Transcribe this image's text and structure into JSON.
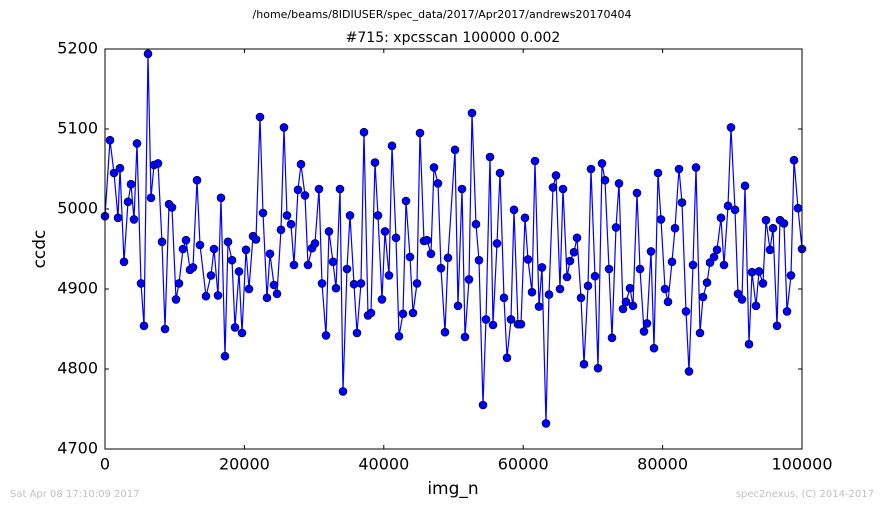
{
  "chart_data": {
    "type": "line",
    "suptitle": "/home/beams/8IDIUSER/spec_data/2017/Apr2017/andrews20170404",
    "title": "#715: xpcsscan 100000 0.002",
    "xlabel": "img_n",
    "ylabel": "ccdc",
    "footer_left": "Sat Apr 08 17:10:09 2017",
    "footer_right": "spec2nexus, (C) 2014-2017",
    "xlim": [
      0,
      100000
    ],
    "xticks": [
      0,
      20000,
      40000,
      60000,
      80000,
      100000
    ],
    "ylim": [
      4700,
      5200
    ],
    "yticks": [
      4700,
      4800,
      4900,
      5000,
      5100,
      5200
    ],
    "grid": false,
    "x": [
      0,
      717,
      1291,
      1865,
      2152,
      2726,
      3300,
      3730,
      4161,
      4591,
      5165,
      5596,
      6169,
      6600,
      7030,
      7604,
      8178,
      8608,
      9182,
      9612,
      10186,
      10617,
      11190,
      11621,
      12195,
      12625,
      13199,
      13629,
      14490,
      15207,
      15638,
      16212,
      16642,
      17216,
      17646,
      18220,
      18651,
      19224,
      19655,
      20229,
      20659,
      21233,
      21663,
      22237,
      22668,
      23241,
      23672,
      24246,
      24676,
      25250,
      25680,
      26111,
      26685,
      27115,
      27689,
      28119,
      28693,
      29123,
      29697,
      30128,
      30702,
      31132,
      31706,
      32136,
      32710,
      33141,
      33715,
      34145,
      34719,
      35149,
      35723,
      36154,
      36727,
      37158,
      37732,
      38162,
      38736,
      39166,
      39740,
      40171,
      40745,
      41175,
      41749,
      42179,
      42753,
      43184,
      43758,
      44188,
      44762,
      45192,
      45766,
      46197,
      46771,
      47201,
      47775,
      48205,
      48779,
      49210,
      50214,
      50645,
      51219,
      51649,
      52223,
      52654,
      53228,
      53658,
      54232,
      54662,
      55236,
      55667,
      56241,
      56671,
      57245,
      57675,
      58249,
      58680,
      59254,
      59684,
      60258,
      60688,
      61262,
      61693,
      62267,
      62697,
      63271,
      63701,
      64275,
      64706,
      65280,
      65710,
      66284,
      66714,
      67288,
      67719,
      68293,
      68723,
      69297,
      69727,
      70301,
      70732,
      71306,
      71736,
      72310,
      72740,
      73314,
      73745,
      74319,
      74749,
      75323,
      75753,
      76327,
      76758,
      77332,
      77762,
      78336,
      78766,
      79340,
      79771,
      80345,
      80775,
      81349,
      81779,
      82353,
      82784,
      83358,
      83788,
      84362,
      84792,
      85366,
      85797,
      86371,
      86801,
      87375,
      87805,
      88379,
      88810,
      89384,
      89814,
      90388,
      90818,
      91392,
      91823,
      92397,
      92827,
      93401,
      93831,
      94405,
      94836,
      95410,
      95840,
      96414,
      96844,
      97418,
      97849,
      98423,
      98853,
      99427,
      100000
    ],
    "series": [
      {
        "color": "#0000ff",
        "values": [
          4991,
          5086,
          5045,
          4989,
          5051,
          4934,
          5009,
          5031,
          4987,
          5082,
          4907,
          4854,
          5194,
          5014,
          5055,
          5057,
          4959,
          4850,
          5006,
          5002,
          4887,
          4907,
          4950,
          4961,
          4924,
          4927,
          5036,
          4955,
          4891,
          4917,
          4950,
          4892,
          5014,
          4816,
          4959,
          4936,
          4852,
          4922,
          4845,
          4949,
          4900,
          4966,
          4962,
          5115,
          4995,
          4889,
          4944,
          4905,
          4894,
          4974,
          5102,
          4992,
          4981,
          4930,
          5024,
          5056,
          5017,
          4930,
          4951,
          4957,
          5025,
          4907,
          4842,
          4972,
          4934,
          4901,
          5025,
          4772,
          4925,
          4992,
          4906,
          4845,
          4907,
          5096,
          4867,
          4870,
          5058,
          4992,
          4887,
          4972,
          4917,
          5079,
          4964,
          4841,
          4869,
          5010,
          4940,
          4870,
          4907,
          5095,
          4960,
          4961,
          4944,
          5052,
          5032,
          4926,
          4846,
          4939,
          5074,
          4879,
          5025,
          4840,
          4912,
          5120,
          4981,
          4936,
          4755,
          4862,
          5065,
          4855,
          4957,
          5045,
          4889,
          4814,
          4862,
          4999,
          4856,
          4856,
          4989,
          4937,
          4896,
          5060,
          4878,
          4927,
          4732,
          4893,
          5027,
          5042,
          4900,
          5025,
          4915,
          4935,
          4946,
          4964,
          4889,
          4806,
          4904,
          5050,
          4916,
          4801,
          5057,
          5036,
          4925,
          4839,
          4977,
          5032,
          4875,
          4884,
          4901,
          4879,
          5020,
          4925,
          4847,
          4857,
          4947,
          4826,
          5045,
          4987,
          4900,
          4884,
          4934,
          4976,
          5050,
          5008,
          4872,
          4797,
          4930,
          5052,
          4845,
          4890,
          4908,
          4933,
          4940,
          4949,
          4989,
          4930,
          5004,
          5102,
          4999,
          4894,
          4887,
          5029,
          4831,
          4921,
          4879,
          4922,
          4907,
          4986,
          4949,
          4976,
          4854,
          4986,
          4982,
          4872,
          4917,
          5061,
          5001,
          4950
        ]
      }
    ]
  }
}
